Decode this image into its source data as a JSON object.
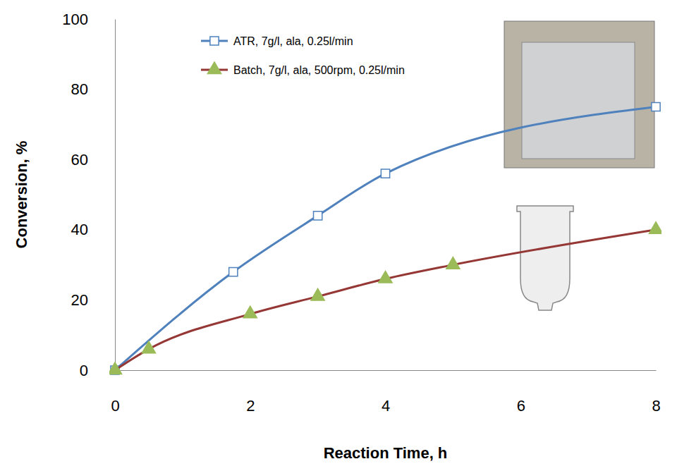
{
  "chart_data": {
    "type": "line",
    "x_label": "Reaction Time, h",
    "y_label": "Conversion, %",
    "xlim": [
      0,
      8
    ],
    "xticks": [
      0,
      2,
      4,
      6,
      8
    ],
    "ylim": [
      0,
      100
    ],
    "yticks": [
      0,
      20,
      40,
      60,
      80,
      100
    ],
    "grid": false,
    "legend": "top-left",
    "series": [
      {
        "name": "ATR, 7g/l, ala, 0.25l/min",
        "color": "#4f81bd",
        "marker": "square",
        "line_style": "solid",
        "x": [
          0,
          1.75,
          3,
          4,
          8
        ],
        "values": [
          0,
          28,
          44,
          56,
          75
        ]
      },
      {
        "name": "Batch, 7g/l, ala, 500rpm, 0.25l/min",
        "color": "#953735",
        "marker": "triangle",
        "line_style": "solid",
        "x": [
          0,
          0.5,
          2,
          3,
          4,
          5,
          8
        ],
        "values": [
          0,
          6,
          16,
          21,
          26,
          30,
          40
        ]
      }
    ]
  }
}
